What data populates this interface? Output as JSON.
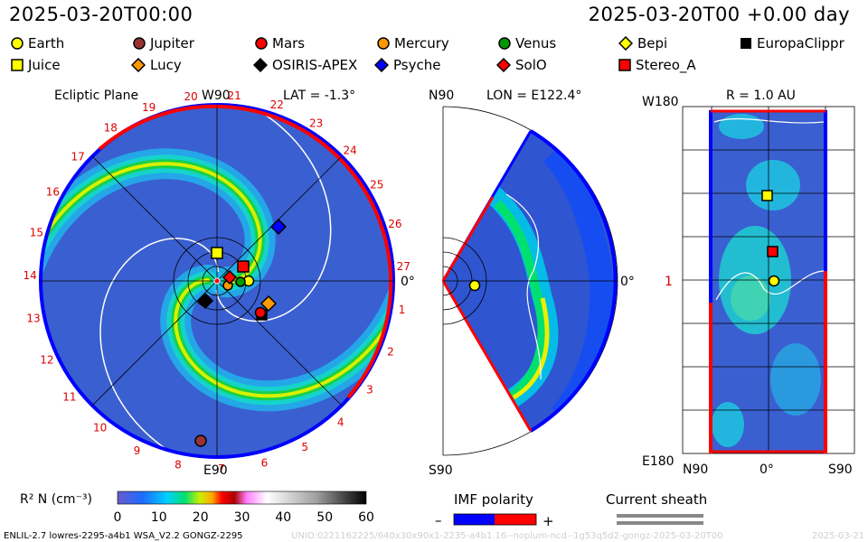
{
  "header": {
    "date_left": "2025-03-20T00:00",
    "date_right": "2025-03-20T00 +0.00 day"
  },
  "legend": [
    {
      "name": "Earth",
      "shape": "circle",
      "color": "#ffff00"
    },
    {
      "name": "Jupiter",
      "shape": "circle",
      "color": "#993333"
    },
    {
      "name": "Mars",
      "shape": "circle",
      "color": "#ff0000"
    },
    {
      "name": "Mercury",
      "shape": "circle",
      "color": "#ff9900"
    },
    {
      "name": "Venus",
      "shape": "circle",
      "color": "#009900"
    },
    {
      "name": "Bepi",
      "shape": "diamond",
      "color": "#ffff00"
    },
    {
      "name": "EuropaClippr",
      "shape": "square-black",
      "color": "#000000"
    },
    {
      "name": "Juice",
      "shape": "square",
      "color": "#ffff00"
    },
    {
      "name": "Lucy",
      "shape": "diamond",
      "color": "#ff9900"
    },
    {
      "name": "OSIRIS-APEX",
      "shape": "diamond",
      "color": "#000000"
    },
    {
      "name": "Psyche",
      "shape": "diamond",
      "color": "#0000ff"
    },
    {
      "name": "SolO",
      "shape": "diamond",
      "color": "#ff0000"
    },
    {
      "name": "Stereo_A",
      "shape": "square",
      "color": "#ff0000"
    }
  ],
  "panels": {
    "ecliptic": {
      "title": "Ecliptic Plane",
      "top_label": "W90",
      "lat_label": "LAT = -1.3°",
      "right_label": "0°",
      "bottom_label": "E90",
      "carrington_ticks": [
        "8",
        "9",
        "10",
        "11",
        "12",
        "13",
        "14",
        "15",
        "16",
        "17",
        "18",
        "19",
        "20",
        "21",
        "22",
        "23",
        "24",
        "25",
        "26",
        "27",
        "1",
        "2",
        "3",
        "4",
        "5",
        "6",
        "7"
      ]
    },
    "meridional": {
      "top_label": "N90",
      "lon_label": "LON = E122.4°",
      "right_label": "0°",
      "bottom_label": "S90"
    },
    "radial": {
      "title": "R = 1.0 AU",
      "top_left": "W180",
      "mid_left": "1",
      "bottom_left": "E180",
      "bottom_ticks": [
        "N90",
        "0°",
        "S90"
      ]
    }
  },
  "colorbar": {
    "label": "R² N (cm⁻³)",
    "ticks": [
      "0",
      "10",
      "20",
      "30",
      "40",
      "50",
      "60"
    ]
  },
  "imf": {
    "label": "IMF polarity",
    "minus": "–",
    "plus": "+",
    "neg_color": "#0000ff",
    "pos_color": "#ff0000"
  },
  "sheath": {
    "label": "Current sheath"
  },
  "footer": {
    "model": "ENLIL-2.7 lowres-2295-a4b1 WSA_V2.2 GONGZ-2295",
    "path": "UNIO:0221162225/640x30x90x1-2235-a4b1.16--noplum-ncd--1g53q5d2-gongz-2025-03-20T00",
    "right": "2025-03-21"
  }
}
